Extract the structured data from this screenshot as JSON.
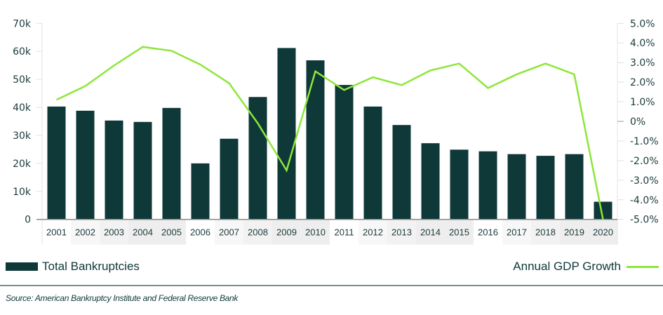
{
  "chart_data": {
    "type": "bar+line",
    "categories": [
      "2001",
      "2002",
      "2003",
      "2004",
      "2005",
      "2006",
      "2007",
      "2008",
      "2009",
      "2010",
      "2011",
      "2012",
      "2013",
      "2014",
      "2015",
      "2016",
      "2017",
      "2018",
      "2019",
      "2020"
    ],
    "series": [
      {
        "name": "Total Bankruptcies",
        "type": "bar",
        "axis": "left",
        "color": "#0f3838",
        "values": [
          40300,
          38800,
          35300,
          34800,
          39800,
          20000,
          28800,
          43700,
          61200,
          56800,
          48000,
          40300,
          33700,
          27200,
          24900,
          24300,
          23300,
          22700,
          23300,
          6300
        ]
      },
      {
        "name": "Annual GDP Growth",
        "type": "line",
        "axis": "right",
        "color": "#8ee63a",
        "values": [
          1.1,
          1.8,
          2.85,
          3.8,
          3.6,
          2.9,
          1.95,
          -0.1,
          -2.5,
          2.55,
          1.6,
          2.25,
          1.85,
          2.6,
          2.95,
          1.7,
          2.4,
          2.95,
          2.4,
          -5.0
        ]
      }
    ],
    "y_left": {
      "range": [
        0,
        70000
      ],
      "ticks": [
        "0",
        "10k",
        "20k",
        "30k",
        "40k",
        "50k",
        "60k",
        "70k"
      ]
    },
    "y_right": {
      "range": [
        -5,
        5
      ],
      "ticks": [
        "-5.0%",
        "-4.0%",
        "-3.0%",
        "-2.0%",
        "-1.0%",
        "0%",
        "1.0%",
        "2.0%",
        "3.0%",
        "4.0%",
        "5.0%"
      ]
    },
    "grid": false,
    "legend": {
      "left": "Total Bankruptcies",
      "right": "Annual GDP Growth",
      "placement": "bottom"
    },
    "source": "Source: American Bankruptcy Institute and Federal Reserve Bank"
  }
}
